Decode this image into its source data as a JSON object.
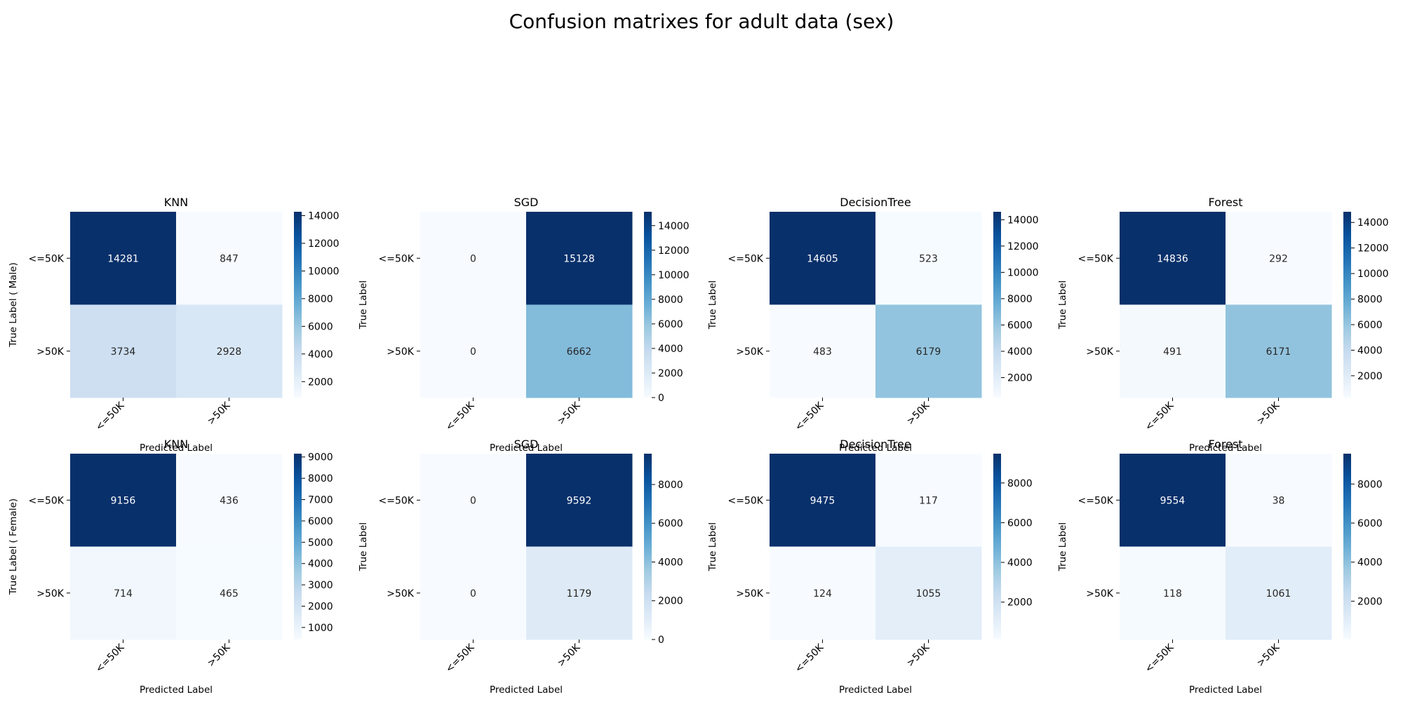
{
  "chart_data": {
    "type": "heatmap",
    "title": "Confusion matrixes for adult data (sex)",
    "colormap": "Blues",
    "colormap_stops": [
      "#f7fbff",
      "#deebf7",
      "#c6dbef",
      "#9ecae1",
      "#6baed6",
      "#4292c6",
      "#2171b5",
      "#08519c",
      "#08306b"
    ],
    "xlabel": "Predicted Label",
    "class_labels": [
      "<=50K",
      ">50K"
    ],
    "row_label_first_column": [
      "True Label ( Male)",
      "True Label ( Female)"
    ],
    "row_label_other_columns": "True Label",
    "panels": [
      {
        "title": "KNN",
        "group": "Male",
        "matrix": [
          [
            14281,
            847
          ],
          [
            3734,
            2928
          ]
        ],
        "colorbar_ticks": [
          2000,
          4000,
          6000,
          8000,
          10000,
          12000,
          14000
        ]
      },
      {
        "title": "SGD",
        "group": "Male",
        "matrix": [
          [
            0,
            15128
          ],
          [
            0,
            6662
          ]
        ],
        "colorbar_ticks": [
          0,
          2000,
          4000,
          6000,
          8000,
          10000,
          12000,
          14000
        ]
      },
      {
        "title": "DecisionTree",
        "group": "Male",
        "matrix": [
          [
            14605,
            523
          ],
          [
            483,
            6179
          ]
        ],
        "colorbar_ticks": [
          2000,
          4000,
          6000,
          8000,
          10000,
          12000,
          14000
        ]
      },
      {
        "title": "Forest",
        "group": "Male",
        "matrix": [
          [
            14836,
            292
          ],
          [
            491,
            6171
          ]
        ],
        "colorbar_ticks": [
          2000,
          4000,
          6000,
          8000,
          10000,
          12000,
          14000
        ]
      },
      {
        "title": "KNN",
        "group": "Female",
        "matrix": [
          [
            9156,
            436
          ],
          [
            714,
            465
          ]
        ],
        "colorbar_ticks": [
          1000,
          2000,
          3000,
          4000,
          5000,
          6000,
          7000,
          8000,
          9000
        ]
      },
      {
        "title": "SGD",
        "group": "Female",
        "matrix": [
          [
            0,
            9592
          ],
          [
            0,
            1179
          ]
        ],
        "colorbar_ticks": [
          0,
          2000,
          4000,
          6000,
          8000
        ]
      },
      {
        "title": "DecisionTree",
        "group": "Female",
        "matrix": [
          [
            9475,
            117
          ],
          [
            124,
            1055
          ]
        ],
        "colorbar_ticks": [
          2000,
          4000,
          6000,
          8000
        ]
      },
      {
        "title": "Forest",
        "group": "Female",
        "matrix": [
          [
            9554,
            38
          ],
          [
            118,
            1061
          ]
        ],
        "colorbar_ticks": [
          2000,
          4000,
          6000,
          8000
        ]
      }
    ]
  }
}
